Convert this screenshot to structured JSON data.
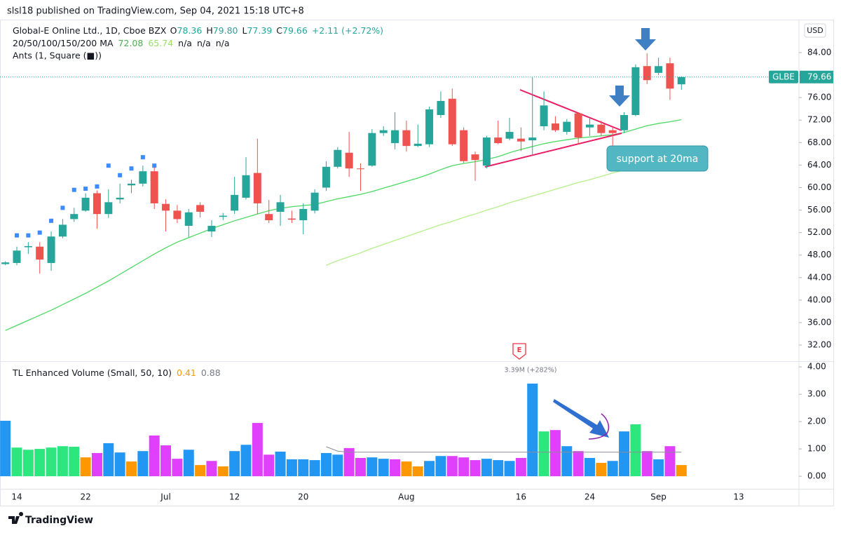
{
  "header": {
    "published": "slsl18 published on TradingView.com, Sep 04, 2021 15:18 UTC+8",
    "symbol": "Global-E Online Ltd., 1D, Cboe BZX",
    "ohlc": [
      {
        "key": "O",
        "value": "78.36"
      },
      {
        "key": "H",
        "value": "79.80"
      },
      {
        "key": "L",
        "value": "77.39"
      },
      {
        "key": "C",
        "value": "79.66"
      }
    ],
    "change": "+2.11 (+2.72%)",
    "ma_title": "20/50/100/150/200 MA",
    "ma_values": [
      {
        "value": "72.08",
        "color": "#4caf50"
      },
      {
        "value": "65.74",
        "color": "#9be06a"
      },
      {
        "value": "n/a",
        "color": "#131722"
      },
      {
        "value": "n/a",
        "color": "#131722"
      },
      {
        "value": "n/a",
        "color": "#131722"
      }
    ],
    "ants_title": "Ants (1, Square (■))",
    "currency": "USD",
    "ticker": "GLBE"
  },
  "chart_data": [
    {
      "type": "candlestick",
      "categories": [
        null,
        "14",
        null,
        null,
        null,
        null,
        null,
        "22",
        null,
        null,
        null,
        null,
        null,
        null,
        "Jul",
        null,
        null,
        null,
        null,
        null,
        "12",
        null,
        null,
        null,
        null,
        null,
        "20",
        null,
        null,
        null,
        null,
        null,
        null,
        null,
        null,
        "Aug",
        null,
        null,
        null,
        null,
        null,
        null,
        null,
        null,
        null,
        "16",
        null,
        null,
        null,
        null,
        null,
        "24",
        null,
        null,
        null,
        null,
        null,
        "Sep",
        null,
        null,
        null,
        null,
        null,
        null,
        "13"
      ],
      "ohlc": {
        "open": [
          46.4,
          46.6,
          49.4,
          49.5,
          46.6,
          51.3,
          54.4,
          55.9,
          59.0,
          55.3,
          57.9,
          60.4,
          60.7,
          62.9,
          57.1,
          55.9,
          53.2,
          56.9,
          52.2,
          54.8,
          55.9,
          58.2,
          62.6,
          55.3,
          55.7,
          54.5,
          54.2,
          55.9,
          60.0,
          63.7,
          66.2,
          63.4,
          63.9,
          69.7,
          67.9,
          70.2,
          67.4,
          67.7,
          72.9,
          75.8,
          70.2,
          65.9,
          63.9,
          68.9,
          68.7,
          68.7,
          68.4,
          70.9,
          71.4,
          69.9,
          73.2,
          70.7,
          71.2,
          70.2,
          70.2,
          72.9,
          81.6,
          80.4,
          82.1,
          78.36,
          null,
          null,
          null,
          null,
          null
        ],
        "high": [
          46.9,
          49.5,
          50.3,
          50.3,
          52.2,
          54.4,
          56.4,
          59.0,
          59.5,
          59.7,
          60.7,
          61.4,
          63.9,
          63.7,
          57.9,
          56.9,
          56.2,
          57.4,
          54.2,
          55.5,
          61.9,
          65.4,
          68.7,
          57.8,
          58.7,
          55.9,
          57.2,
          59.7,
          64.7,
          67.2,
          69.9,
          64.3,
          70.4,
          70.9,
          73.4,
          71.9,
          71.2,
          74.4,
          77.1,
          77.6,
          70.7,
          66.4,
          69.2,
          71.9,
          72.4,
          70.7,
          79.6,
          77.1,
          72.7,
          72.2,
          73.4,
          72.4,
          71.9,
          70.7,
          73.4,
          81.9,
          83.9,
          83.1,
          83.1,
          79.8,
          null,
          null,
          null,
          null,
          null
        ],
        "low": [
          46.2,
          46.2,
          48.2,
          44.7,
          45.2,
          51.0,
          53.9,
          55.7,
          52.7,
          54.6,
          57.2,
          59.0,
          60.2,
          56.2,
          52.2,
          53.7,
          51.2,
          54.7,
          51.2,
          54.2,
          55.3,
          57.9,
          55.3,
          53.7,
          53.2,
          53.7,
          51.7,
          55.4,
          59.4,
          63.4,
          61.9,
          59.4,
          63.7,
          69.2,
          66.8,
          66.4,
          67.2,
          67.2,
          72.4,
          67.4,
          64.4,
          61.2,
          63.4,
          67.7,
          68.4,
          66.5,
          65.9,
          70.2,
          69.9,
          69.4,
          67.7,
          69.2,
          69.2,
          67.4,
          69.7,
          72.7,
          78.4,
          80.0,
          75.6,
          77.39,
          null,
          null,
          null,
          null,
          null
        ],
        "close": [
          46.7,
          48.8,
          49.6,
          47.2,
          51.3,
          53.4,
          55.3,
          58.2,
          55.3,
          57.4,
          58.2,
          60.7,
          62.9,
          57.2,
          55.9,
          54.4,
          55.6,
          55.7,
          53.2,
          55.0,
          58.7,
          62.2,
          57.2,
          54.2,
          57.4,
          54.3,
          56.2,
          59.1,
          63.7,
          66.7,
          63.4,
          63.3,
          69.7,
          70.2,
          70.2,
          67.4,
          67.8,
          73.9,
          75.4,
          67.7,
          64.7,
          64.9,
          68.9,
          67.9,
          69.9,
          68.2,
          68.9,
          74.6,
          70.2,
          71.7,
          68.9,
          71.2,
          69.7,
          69.7,
          72.9,
          81.4,
          79.1,
          81.6,
          77.6,
          79.66,
          null,
          null,
          null,
          null,
          null
        ]
      },
      "up_color": "#26a69a",
      "down_color": "#ef5350",
      "ma_lines": [
        {
          "color": "#4cd964",
          "values": [
            34.6,
            35.5,
            36.4,
            37.3,
            38.2,
            39.2,
            40.2,
            41.2,
            42.3,
            43.4,
            44.6,
            45.8,
            47.0,
            48.2,
            49.3,
            50.3,
            51.1,
            51.9,
            52.7,
            53.4,
            54.1,
            54.7,
            55.3,
            55.9,
            56.3,
            56.6,
            56.8,
            57.0,
            57.5,
            58.0,
            58.4,
            58.8,
            59.3,
            59.9,
            60.5,
            61.1,
            61.7,
            62.4,
            63.2,
            63.9,
            64.3,
            64.6,
            65.0,
            65.5,
            66.2,
            66.8,
            67.3,
            67.8,
            68.2,
            68.5,
            68.8,
            69.0,
            69.2,
            69.4,
            69.8,
            70.4,
            71.0,
            71.4,
            71.7,
            72.08,
            null,
            null,
            null,
            null,
            null
          ]
        },
        {
          "color": "#b7ef8a",
          "values": [
            null,
            null,
            null,
            null,
            null,
            null,
            null,
            null,
            null,
            null,
            null,
            null,
            null,
            null,
            null,
            null,
            null,
            null,
            null,
            null,
            null,
            null,
            null,
            null,
            null,
            null,
            null,
            null,
            46.2,
            47.0,
            47.7,
            48.4,
            49.2,
            49.9,
            50.6,
            51.3,
            52.0,
            52.7,
            53.4,
            54.0,
            54.7,
            55.3,
            56.0,
            56.6,
            57.3,
            57.9,
            58.5,
            59.1,
            59.7,
            60.3,
            60.9,
            61.4,
            62.0,
            62.6,
            63.1,
            63.7,
            64.2,
            64.7,
            65.2,
            65.74,
            null,
            null,
            null,
            null,
            null
          ]
        }
      ],
      "markers": {
        "color": "#3d8bfd",
        "values": [
          null,
          51.5,
          51.5,
          52.0,
          54.1,
          56.4,
          59.6,
          59.8,
          60.2,
          63.9,
          62.2,
          63.4,
          65.4,
          63.9,
          null,
          null,
          null,
          null,
          null,
          null,
          null,
          null,
          null,
          null,
          null,
          null,
          null,
          null,
          null,
          null,
          null,
          null,
          null,
          null,
          null,
          null,
          null,
          null,
          null,
          null,
          null,
          null,
          null,
          null,
          null,
          null,
          null,
          null,
          null,
          null,
          null,
          null,
          null,
          null,
          null,
          null,
          null,
          null,
          null,
          null,
          null,
          null,
          null,
          null,
          null
        ]
      },
      "last_price": 79.66,
      "last_price_color": "#26a69a",
      "ylim": [
        29.14,
        89.61
      ],
      "yticks": [
        {
          "value": 32,
          "label": "32.00"
        },
        {
          "value": 36,
          "label": "36.00"
        },
        {
          "value": 40,
          "label": "40.00"
        },
        {
          "value": 44,
          "label": "44.00"
        },
        {
          "value": 48,
          "label": "48.00"
        },
        {
          "value": 52,
          "label": "52.00"
        },
        {
          "value": 56,
          "label": "56.00"
        },
        {
          "value": 60,
          "label": "60.00"
        },
        {
          "value": 64,
          "label": "64.00"
        },
        {
          "value": 68,
          "label": "68.00"
        },
        {
          "value": 72,
          "label": "72.00"
        },
        {
          "value": 76,
          "label": "76.00"
        },
        {
          "value": 80,
          "label": "80.00"
        },
        {
          "value": 84,
          "label": "84.00"
        }
      ]
    },
    {
      "type": "bar",
      "title": "TL Enhanced Volume (Small, 50, 10)",
      "legend_values": [
        {
          "value": "0.41",
          "color": "#ff9800"
        },
        {
          "value": "0.88",
          "color": "#787b86"
        }
      ],
      "values": [
        2.03,
        1.05,
        0.97,
        1.0,
        1.05,
        1.1,
        1.08,
        0.69,
        0.85,
        1.21,
        0.87,
        0.54,
        0.92,
        1.49,
        1.13,
        0.64,
        0.97,
        0.41,
        0.56,
        0.36,
        0.92,
        1.15,
        1.95,
        0.79,
        0.9,
        0.62,
        0.62,
        0.59,
        0.85,
        0.79,
        1.03,
        0.67,
        0.69,
        0.64,
        0.62,
        0.54,
        0.36,
        0.56,
        0.74,
        0.74,
        0.69,
        0.59,
        0.64,
        0.59,
        0.56,
        0.67,
        3.39,
        1.64,
        1.69,
        1.1,
        0.92,
        0.67,
        0.49,
        0.56,
        1.64,
        1.9,
        0.92,
        0.62,
        1.1,
        0.41,
        null,
        null,
        null,
        null,
        null
      ],
      "colors": [
        "#2196f3",
        "#2ee67e",
        "#2ee67e",
        "#2ee67e",
        "#2ee67e",
        "#2ee67e",
        "#2ee67e",
        "#ff9800",
        "#e040fb",
        "#2196f3",
        "#2196f3",
        "#ff9800",
        "#2196f3",
        "#e040fb",
        "#e040fb",
        "#e040fb",
        "#2196f3",
        "#ff9800",
        "#e040fb",
        "#ff9800",
        "#2196f3",
        "#2196f3",
        "#e040fb",
        "#e040fb",
        "#2196f3",
        "#2196f3",
        "#2196f3",
        "#2196f3",
        "#2196f3",
        "#2196f3",
        "#e040fb",
        "#e040fb",
        "#2196f3",
        "#2196f3",
        "#e040fb",
        "#ff9800",
        "#ff9800",
        "#2196f3",
        "#2196f3",
        "#e040fb",
        "#e040fb",
        "#e040fb",
        "#2196f3",
        "#2196f3",
        "#2196f3",
        "#e040fb",
        "#2196f3",
        "#2ee67e",
        "#e040fb",
        "#2196f3",
        "#e040fb",
        "#2196f3",
        "#ff9800",
        "#2196f3",
        "#2196f3",
        "#2ee67e",
        "#e040fb",
        "#2196f3",
        "#e040fb",
        "#ff9800",
        null,
        null,
        null,
        null,
        null
      ],
      "avg": {
        "color": "#8a8d96",
        "values": [
          null,
          null,
          null,
          null,
          null,
          null,
          null,
          null,
          null,
          null,
          null,
          null,
          null,
          null,
          null,
          null,
          null,
          null,
          null,
          null,
          null,
          null,
          null,
          null,
          null,
          null,
          null,
          null,
          1.08,
          0.92,
          0.88,
          0.88,
          0.88,
          0.88,
          0.88,
          0.88,
          0.88,
          0.88,
          0.88,
          0.88,
          0.88,
          0.88,
          0.88,
          0.88,
          0.88,
          0.88,
          0.88,
          0.88,
          0.88,
          0.88,
          0.88,
          0.88,
          0.88,
          0.88,
          0.88,
          0.88,
          0.88,
          0.88,
          0.88,
          0.88,
          null,
          null,
          null,
          null,
          null
        ]
      },
      "ylim": [
        -0.46,
        4.21
      ],
      "yticks": [
        {
          "value": 0,
          "label": "0.00"
        },
        {
          "value": 1,
          "label": "1.00"
        },
        {
          "value": 2,
          "label": "2.00"
        },
        {
          "value": 3,
          "label": "3.00"
        },
        {
          "value": 4,
          "label": "4.00"
        }
      ]
    }
  ],
  "annotations": {
    "support": "support at 20ma",
    "earnings": "E",
    "volume_peak": "3.39M (+282%)"
  },
  "footer": {
    "brand": "TradingView"
  }
}
